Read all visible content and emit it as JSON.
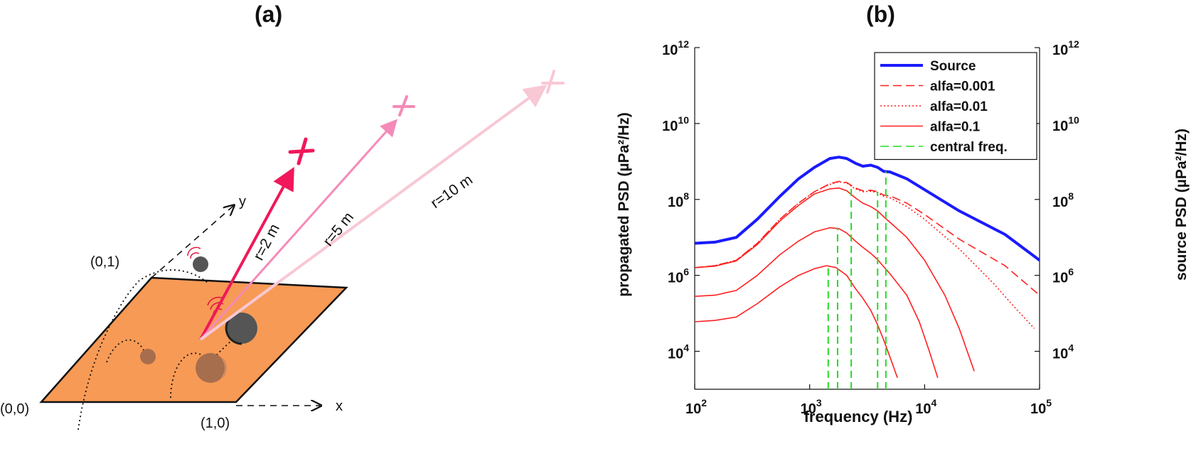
{
  "panel_a": {
    "label": "(a)",
    "corner_labels": [
      "(0,0)",
      "(1,0)",
      "(0,1)"
    ],
    "axis_x_label": "x",
    "axis_y_label": "y",
    "distance_labels": [
      "r=2 m",
      "r=5 m",
      "r=10 m"
    ],
    "colors": {
      "plate": "#f79a55",
      "ray_near": "#f0185a",
      "ray_mid": "#f58ab8",
      "ray_far": "#f8c8d4",
      "particle_dark": "#555555",
      "particle_buried": "#a76e4e"
    }
  },
  "panel_b": {
    "label": "(b)",
    "chart_data": {
      "type": "line",
      "xlabel": "frequency (Hz)",
      "ylabel_left": "propagated PSD (µPa²/Hz)",
      "ylabel_right": "source PSD (µPa²/Hz)",
      "x_scale": "log",
      "y_scale": "log",
      "xlim": [
        100,
        100000
      ],
      "ylim": [
        1000,
        1000000000000
      ],
      "x_ticks": [
        100,
        1000,
        10000,
        100000
      ],
      "x_tick_labels": [
        {
          "base": "10",
          "exp": "2"
        },
        {
          "base": "10",
          "exp": "3"
        },
        {
          "base": "10",
          "exp": "4"
        },
        {
          "base": "10",
          "exp": "5"
        }
      ],
      "y_ticks": [
        10000,
        1000000,
        100000000,
        10000000000,
        1000000000000
      ],
      "y_tick_labels": [
        {
          "base": "10",
          "exp": "4"
        },
        {
          "base": "10",
          "exp": "6"
        },
        {
          "base": "10",
          "exp": "8"
        },
        {
          "base": "10",
          "exp": "10"
        },
        {
          "base": "10",
          "exp": "12"
        }
      ],
      "grid": false,
      "legend_position": "top-right",
      "legend": [
        {
          "label": "Source",
          "color": "#1a1aff",
          "style": "solid-thick"
        },
        {
          "label": "alfa=0.001",
          "color": "#ff2020",
          "style": "dashed"
        },
        {
          "label": "alfa=0.01",
          "color": "#ff2020",
          "style": "dotted"
        },
        {
          "label": "alfa=0.1",
          "color": "#ff2020",
          "style": "solid"
        },
        {
          "label": "central freq.",
          "color": "#22dd22",
          "style": "dashed"
        }
      ],
      "series": [
        {
          "name": "Source",
          "color": "#1a1aff",
          "style": "solid-thick",
          "points": [
            [
              100,
              7000000.0
            ],
            [
              150,
              7500000.0
            ],
            [
              230,
              10000000.0
            ],
            [
              350,
              30000000.0
            ],
            [
              550,
              120000000.0
            ],
            [
              800,
              350000000.0
            ],
            [
              1100,
              700000000.0
            ],
            [
              1500,
              1200000000.0
            ],
            [
              1800,
              1300000000.0
            ],
            [
              2100,
              1200000000.0
            ],
            [
              2500,
              900000000.0
            ],
            [
              2900,
              750000000.0
            ],
            [
              3400,
              800000000.0
            ],
            [
              3900,
              700000000.0
            ],
            [
              4400,
              550000000.0
            ],
            [
              5000,
              530000000.0
            ],
            [
              7000,
              350000000.0
            ],
            [
              10000,
              180000000.0
            ],
            [
              20000,
              50000000.0
            ],
            [
              50000,
              12000000.0
            ],
            [
              100000,
              2500000.0
            ]
          ]
        },
        {
          "name": "alfa=0.001",
          "color": "#ff2020",
          "style": "dashed",
          "points": [
            [
              100,
              1600000.0
            ],
            [
              150,
              1800000.0
            ],
            [
              230,
              2500000.0
            ],
            [
              350,
              7000000.0
            ],
            [
              550,
              30000000.0
            ],
            [
              800,
              80000000.0
            ],
            [
              1100,
              160000000.0
            ],
            [
              1500,
              260000000.0
            ],
            [
              1800,
              300000000.0
            ],
            [
              2100,
              280000000.0
            ],
            [
              2500,
              200000000.0
            ],
            [
              2900,
              170000000.0
            ],
            [
              3400,
              175000000.0
            ],
            [
              3900,
              160000000.0
            ],
            [
              4400,
              130000000.0
            ],
            [
              5000,
              125000000.0
            ],
            [
              7000,
              80000000.0
            ],
            [
              10000,
              40000000.0
            ],
            [
              20000,
              9000000.0
            ],
            [
              50000,
              1800000.0
            ],
            [
              100000,
              300000.0
            ]
          ]
        },
        {
          "name": "alfa=0.01",
          "color": "#ff2020",
          "style": "dotted",
          "points": [
            [
              100,
              1600000.0
            ],
            [
              150,
              1800000.0
            ],
            [
              230,
              2500000.0
            ],
            [
              350,
              7000000.0
            ],
            [
              550,
              30000000.0
            ],
            [
              800,
              80000000.0
            ],
            [
              1100,
              160000000.0
            ],
            [
              1500,
              250000000.0
            ],
            [
              1800,
              290000000.0
            ],
            [
              2100,
              270000000.0
            ],
            [
              2500,
              190000000.0
            ],
            [
              2900,
              160000000.0
            ],
            [
              3400,
              165000000.0
            ],
            [
              3900,
              150000000.0
            ],
            [
              4400,
              120000000.0
            ],
            [
              5000,
              110000000.0
            ],
            [
              7000,
              65000000.0
            ],
            [
              10000,
              30000000.0
            ],
            [
              20000,
              5000000.0
            ],
            [
              40000,
              600000.0
            ],
            [
              60000,
              150000.0
            ],
            [
              90000,
              40000.0
            ]
          ]
        },
        {
          "name": "alfa=0.1 (r=2 m)",
          "color": "#ff2020",
          "style": "solid",
          "points": [
            [
              100,
              1600000.0
            ],
            [
              150,
              1750000.0
            ],
            [
              230,
              2400000.0
            ],
            [
              350,
              6500000.0
            ],
            [
              550,
              27000000.0
            ],
            [
              800,
              70000000.0
            ],
            [
              1100,
              140000000.0
            ],
            [
              1500,
              190000000.0
            ],
            [
              1800,
              200000000.0
            ],
            [
              2100,
              170000000.0
            ],
            [
              2500,
              110000000.0
            ],
            [
              2900,
              80000000.0
            ],
            [
              3400,
              65000000.0
            ],
            [
              3900,
              50000000.0
            ],
            [
              4400,
              35000000.0
            ],
            [
              5000,
              25000000.0
            ],
            [
              7000,
              10000000.0
            ],
            [
              10000,
              2500000.0
            ],
            [
              15000,
              300000.0
            ],
            [
              20000,
              40000.0
            ],
            [
              27000,
              3000.0
            ]
          ]
        },
        {
          "name": "alfa=0.1 (r=5 m)",
          "color": "#ff2020",
          "style": "solid",
          "points": [
            [
              100,
              280000.0
            ],
            [
              150,
              300000.0
            ],
            [
              230,
              400000.0
            ],
            [
              350,
              1000000.0
            ],
            [
              550,
              3500000.0
            ],
            [
              800,
              8000000.0
            ],
            [
              1100,
              14000000.0
            ],
            [
              1500,
              18000000.0
            ],
            [
              1800,
              17000000.0
            ],
            [
              2100,
              13000000.0
            ],
            [
              2500,
              8000000.0
            ],
            [
              2900,
              5500000.0
            ],
            [
              3400,
              3800000.0
            ],
            [
              3900,
              2600000.0
            ],
            [
              4400,
              1700000.0
            ],
            [
              5000,
              1100000.0
            ],
            [
              7000,
              300000.0
            ],
            [
              9000,
              60000.0
            ],
            [
              11000,
              10000.0
            ],
            [
              13000,
              2000.0
            ]
          ]
        },
        {
          "name": "alfa=0.1 (r=10 m)",
          "color": "#ff2020",
          "style": "solid",
          "points": [
            [
              100,
              60000.0
            ],
            [
              150,
              65000.0
            ],
            [
              230,
              80000.0
            ],
            [
              350,
              180000.0
            ],
            [
              550,
              500000.0
            ],
            [
              800,
              1000000.0
            ],
            [
              1100,
              1500000.0
            ],
            [
              1400,
              1800000.0
            ],
            [
              1700,
              1600000.0
            ],
            [
              2100,
              1000000.0
            ],
            [
              2500,
              450000.0
            ],
            [
              2900,
              250000.0
            ],
            [
              3400,
              120000.0
            ],
            [
              3900,
              50000.0
            ],
            [
              4400,
              20000.0
            ],
            [
              5000,
              7000.0
            ],
            [
              5800,
              2000.0
            ]
          ]
        }
      ],
      "central_frequencies": [
        {
          "x": 1450,
          "y_top": 1800000.0
        },
        {
          "x": 1750,
          "y_top": 18000000.0
        },
        {
          "x": 2300,
          "y_top": 200000000.0
        },
        {
          "x": 3900,
          "y_top": 160000000.0
        },
        {
          "x": 4600,
          "y_top": 550000000.0
        }
      ]
    }
  }
}
